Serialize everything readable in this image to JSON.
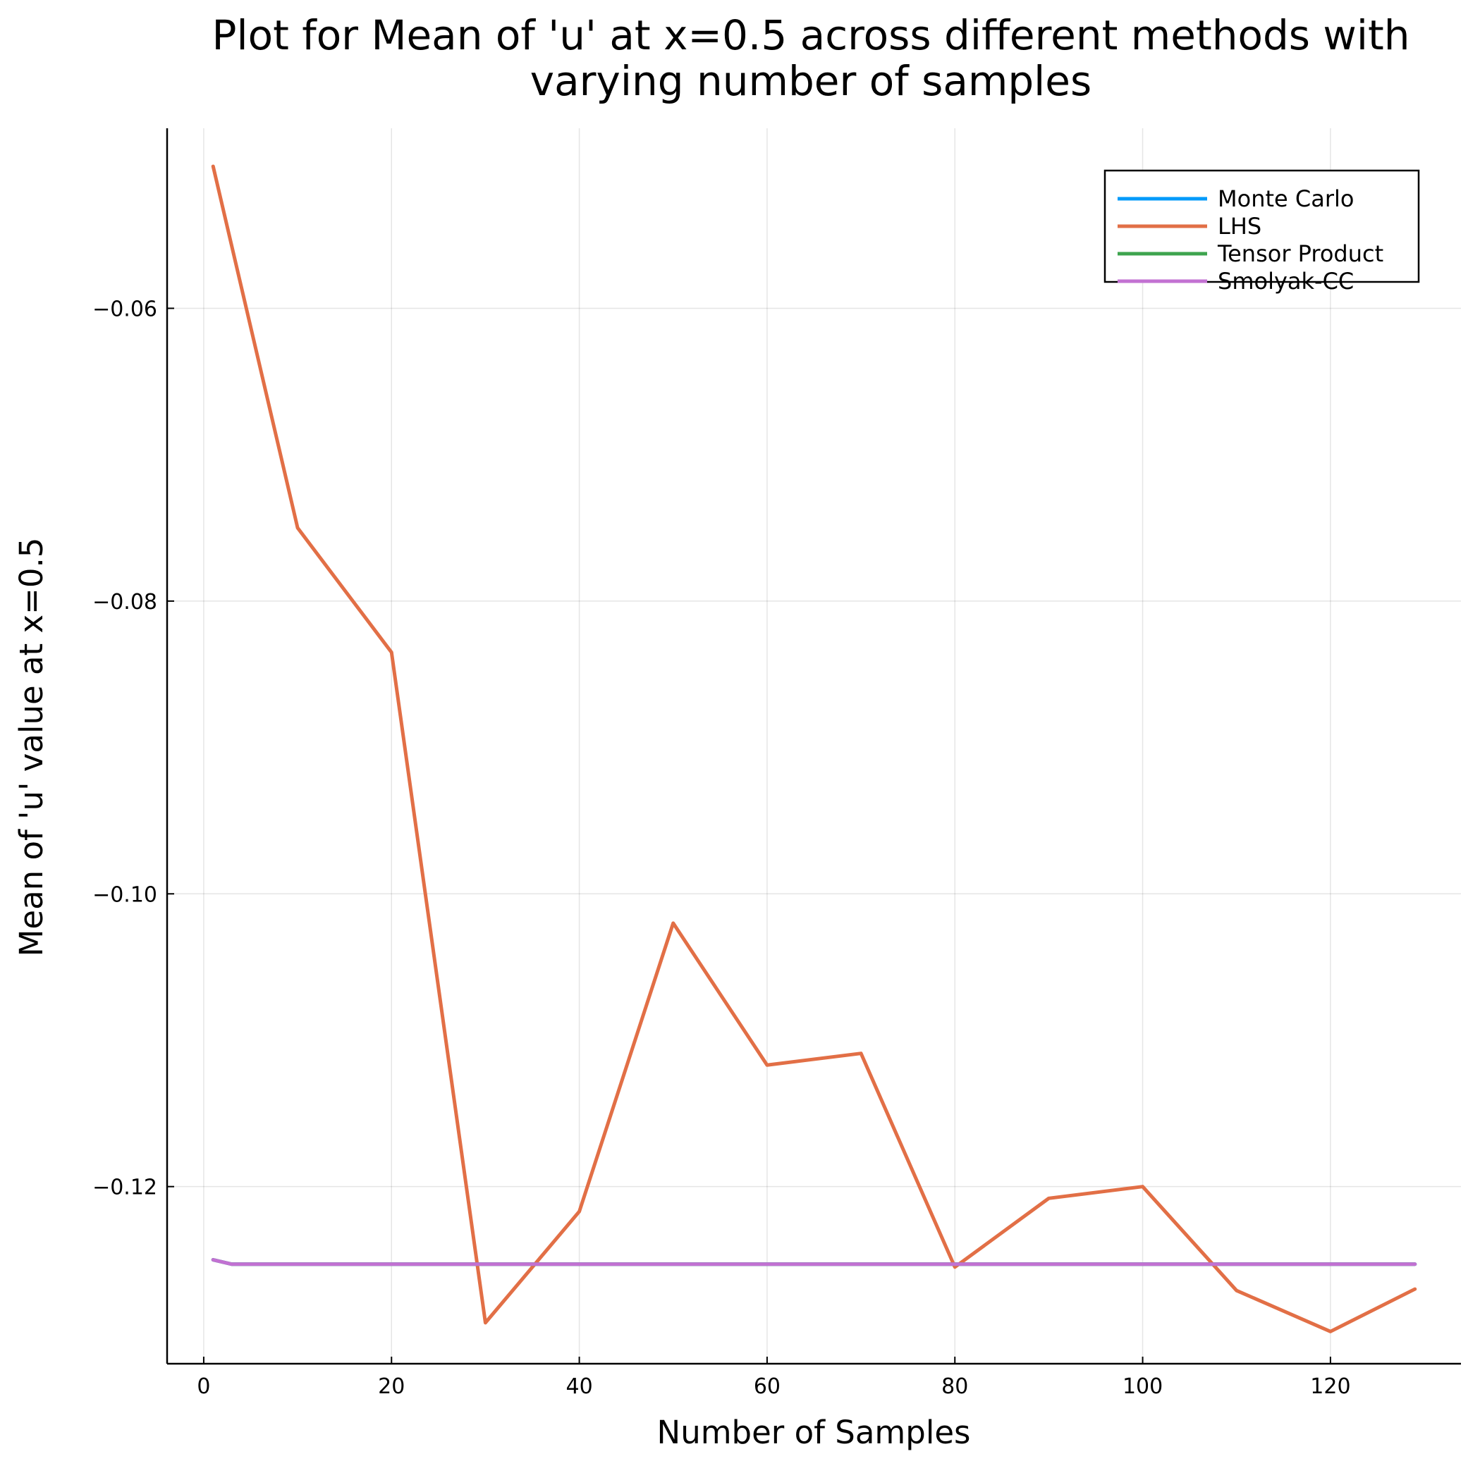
{
  "chart_data": {
    "type": "line",
    "title_lines": [
      "Plot for Mean of 'u' at x=0.5 across different methods with",
      "varying number of samples"
    ],
    "xlabel": "Number of Samples",
    "ylabel": "Mean of 'u' value at x=0.5",
    "xlim": [
      -3.9,
      133.9
    ],
    "ylim": [
      -0.1321,
      -0.0477
    ],
    "xticks": [
      0,
      20,
      40,
      60,
      80,
      100,
      120
    ],
    "xtick_labels": [
      "0",
      "20",
      "40",
      "60",
      "80",
      "100",
      "120"
    ],
    "yticks": [
      -0.06,
      -0.08,
      -0.1,
      -0.12
    ],
    "ytick_labels": [
      "−0.06",
      "−0.08",
      "−0.10",
      "−0.12"
    ],
    "grid": true,
    "legend_position": "top-right",
    "series": [
      {
        "name": "Monte Carlo",
        "color": "#009AFA",
        "x": [
          1,
          3,
          129
        ],
        "y": [
          -0.125,
          -0.1253,
          -0.1253
        ]
      },
      {
        "name": "LHS",
        "color": "#E26F46",
        "x": [
          1,
          10,
          20,
          30,
          40,
          50,
          60,
          70,
          80,
          90,
          100,
          110,
          120,
          129
        ],
        "y": [
          -0.0503,
          -0.075,
          -0.0835,
          -0.1293,
          -0.1217,
          -0.102,
          -0.1117,
          -0.1109,
          -0.1255,
          -0.1208,
          -0.12,
          -0.1271,
          -0.1299,
          -0.127
        ]
      },
      {
        "name": "Tensor Product",
        "color": "#3EA44E",
        "x": [
          1,
          3,
          129
        ],
        "y": [
          -0.125,
          -0.1253,
          -0.1253
        ]
      },
      {
        "name": "Smolyak-CC",
        "color": "#C271D2",
        "x": [
          1,
          3,
          129
        ],
        "y": [
          -0.125,
          -0.1253,
          -0.1253
        ]
      }
    ]
  }
}
